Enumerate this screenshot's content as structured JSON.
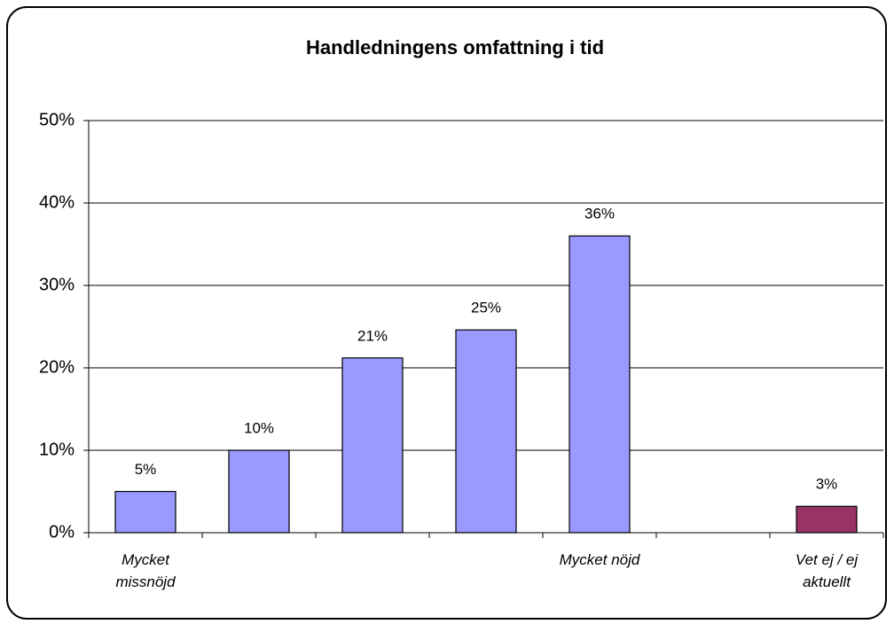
{
  "chart_data": {
    "type": "bar",
    "title": "Handledningens omfattning i tid",
    "categories": [
      "Mycket missnöjd",
      null,
      null,
      null,
      "Mycket nöjd",
      null,
      "Vet ej / ej aktuellt"
    ],
    "values": [
      5,
      10,
      21.2,
      24.6,
      36,
      null,
      3.2
    ],
    "value_labels": [
      "5%",
      "10%",
      "21%",
      "25%",
      "36%",
      null,
      "3%"
    ],
    "colors": [
      "#9999ff",
      "#9999ff",
      "#9999ff",
      "#9999ff",
      "#9999ff",
      null,
      "#993366"
    ],
    "ylim": [
      0,
      50
    ],
    "yticks": [
      {
        "value": 0,
        "label": "0%"
      },
      {
        "value": 10,
        "label": "10%"
      },
      {
        "value": 20,
        "label": "20%"
      },
      {
        "value": 30,
        "label": "30%"
      },
      {
        "value": 40,
        "label": "40%"
      },
      {
        "value": 50,
        "label": "50%"
      }
    ],
    "grid": true
  }
}
